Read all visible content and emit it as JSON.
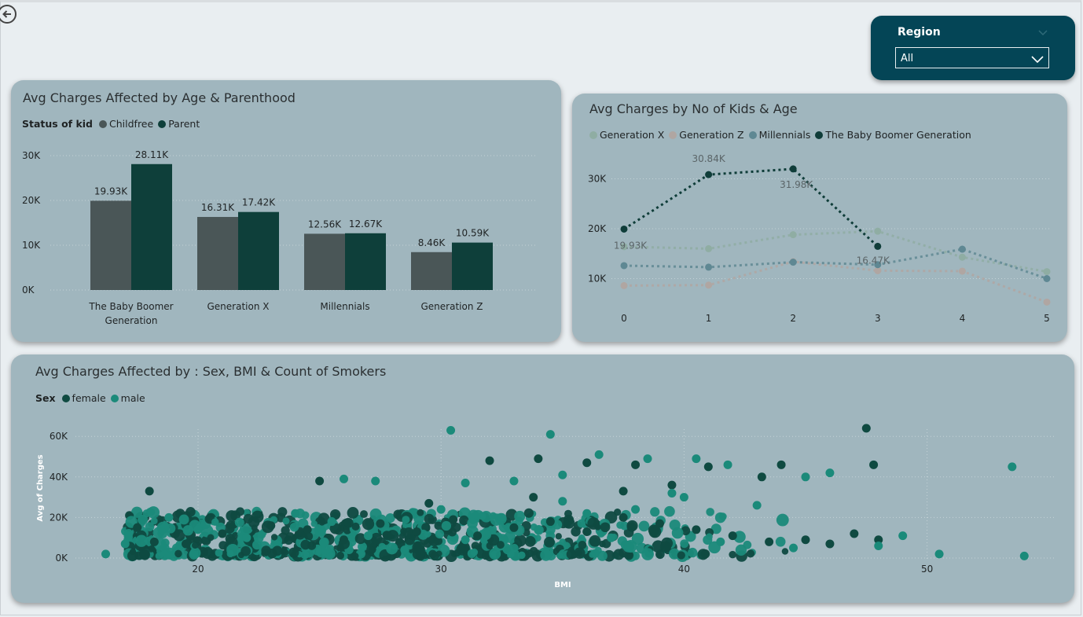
{
  "nav": {
    "back_icon": "arrow-left-circle-icon"
  },
  "slicer": {
    "title": "Region",
    "selected": "All",
    "eraser_icon": "eraser-icon",
    "chevron_icon": "chevron-down-icon"
  },
  "colors": {
    "card_bg": "#a0b6be",
    "slicer_bg": "#044556",
    "childfree": "#4a5657",
    "parent": "#0e3f3a",
    "gen_x": "#8fada3",
    "gen_z": "#b0a6a2",
    "millennials": "#5f8893",
    "boomer": "#0f3d39",
    "female": "#0f4a41",
    "male": "#1b8a7a"
  },
  "bar_chart": {
    "title": "Avg Charges Affected by Age & Parenthood",
    "legend_title": "Status of kid",
    "chart_data": {
      "type": "bar",
      "categories": [
        "The Baby Boomer Generation",
        "Generation X",
        "Millennials",
        "Generation Z"
      ],
      "series": [
        {
          "name": "Childfree",
          "values": [
            19930,
            16310,
            12560,
            8460
          ],
          "labels": [
            "19.93K",
            "16.31K",
            "12.56K",
            "8.46K"
          ]
        },
        {
          "name": "Parent",
          "values": [
            28110,
            17420,
            12670,
            10590
          ],
          "labels": [
            "28.11K",
            "17.42K",
            "12.67K",
            "10.59K"
          ]
        }
      ],
      "yticks": [
        "0K",
        "10K",
        "20K",
        "30K"
      ],
      "ylim": [
        0,
        30000
      ]
    }
  },
  "line_chart": {
    "title": "Avg Charges by No of Kids & Age",
    "chart_data": {
      "type": "line",
      "x": [
        0,
        1,
        2,
        3,
        4,
        5
      ],
      "series": [
        {
          "name": "Generation X",
          "values": [
            16400,
            16000,
            18800,
            19500,
            14300,
            11400
          ]
        },
        {
          "name": "Generation Z",
          "values": [
            8600,
            8700,
            13400,
            11600,
            11500,
            5300
          ]
        },
        {
          "name": "Millennials",
          "values": [
            12600,
            12300,
            13300,
            12800,
            15900,
            10000
          ]
        },
        {
          "name": "The Baby Boomer Generation",
          "values": [
            19930,
            30840,
            31980,
            16470,
            null,
            null
          ]
        }
      ],
      "data_labels": [
        "19.93K",
        "30.84K",
        "31.98K",
        "16.47K"
      ],
      "yticks": [
        "10K",
        "20K",
        "30K"
      ],
      "ylim": [
        5000,
        33000
      ]
    }
  },
  "scatter_chart": {
    "title": "Avg Charges Affected by : Sex, BMI & Count of Smokers",
    "legend_title": "Sex",
    "chart_data": {
      "type": "scatter",
      "series": [
        {
          "name": "female",
          "points": [
            [
              18,
              33000
            ],
            [
              25,
              38000
            ],
            [
              32,
              48000
            ],
            [
              34,
              49000
            ],
            [
              36,
              47000
            ],
            [
              38,
              46000
            ],
            [
              41,
              45000
            ],
            [
              44,
              46000
            ],
            [
              47.5,
              64000
            ],
            [
              47.8,
              46000
            ],
            [
              18.2,
              8000
            ],
            [
              17.5,
              15000
            ],
            [
              19.5,
              7000
            ],
            [
              21,
              12000
            ],
            [
              23,
              16000
            ],
            [
              24.5,
              14000
            ],
            [
              26,
              9000
            ],
            [
              27.5,
              17000
            ],
            [
              29,
              13000
            ],
            [
              30.5,
              19000
            ],
            [
              31.5,
              11000
            ],
            [
              33,
              15000
            ],
            [
              34.5,
              18000
            ],
            [
              36,
              13000
            ],
            [
              37.5,
              20000
            ],
            [
              39,
              17000
            ],
            [
              40.5,
              14000
            ],
            [
              42,
              11000
            ],
            [
              43.5,
              8000
            ],
            [
              45,
              9000
            ],
            [
              46,
              7000
            ],
            [
              47,
              12000
            ],
            [
              48,
              9000
            ],
            [
              29.5,
              27000
            ],
            [
              33.8,
              30000
            ],
            [
              37.5,
              33000
            ],
            [
              39.5,
              36000
            ],
            [
              43.2,
              40000
            ]
          ]
        },
        {
          "name": "male",
          "points": [
            [
              30.4,
              63000
            ],
            [
              34.5,
              61000
            ],
            [
              53.5,
              45000
            ],
            [
              16.2,
              2000
            ],
            [
              17,
              7000
            ],
            [
              18.8,
              20000
            ],
            [
              22,
              10000
            ],
            [
              24,
              22000
            ],
            [
              25.5,
              18000
            ],
            [
              26,
              39000
            ],
            [
              27.3,
              38000
            ],
            [
              28.5,
              4000
            ],
            [
              30,
              24000
            ],
            [
              31,
              37000
            ],
            [
              33,
              38000
            ],
            [
              35,
              41000
            ],
            [
              36.5,
              51000
            ],
            [
              38.5,
              49000
            ],
            [
              40.5,
              49000
            ],
            [
              41.8,
              46000
            ],
            [
              43,
              26000
            ],
            [
              45,
              40000
            ],
            [
              46,
              42000
            ],
            [
              48,
              6000
            ],
            [
              49,
              11000
            ],
            [
              50.5,
              2000
            ],
            [
              54,
              1000
            ],
            [
              35,
              28000
            ],
            [
              38,
              24000
            ],
            [
              36,
              22000
            ],
            [
              40,
              30000
            ],
            [
              39.5,
              32000
            ],
            [
              27,
              11000
            ],
            [
              32.5,
              20000
            ],
            [
              31,
              9000
            ],
            [
              34,
              14000
            ],
            [
              37,
              10000
            ],
            [
              41.5,
              8000
            ],
            [
              44.5,
              5000
            ],
            [
              20,
              14000
            ]
          ]
        }
      ],
      "xticks": [
        "20",
        "30",
        "40",
        "50"
      ],
      "yticks": [
        "0K",
        "20K",
        "40K",
        "60K"
      ],
      "xlabel": "BMI",
      "ylabel": "Avg of Charges",
      "xlim": [
        15,
        55
      ],
      "ylim": [
        0,
        65000
      ]
    }
  }
}
